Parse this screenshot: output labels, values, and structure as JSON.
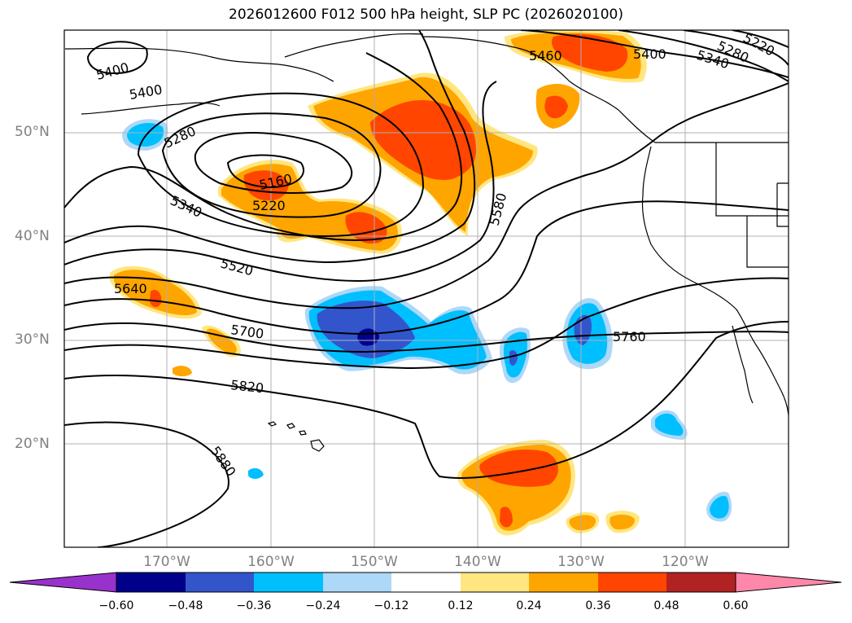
{
  "title": "2026012600 F012 500 hPa height, SLP PC (2026020100)",
  "lat_labels": [
    "50°N",
    "40°N",
    "30°N",
    "20°N"
  ],
  "lon_labels": [
    "170°W",
    "160°W",
    "150°W",
    "140°W",
    "130°W",
    "120°W"
  ],
  "contour_labels": [
    "5400",
    "5400",
    "5280",
    "5160",
    "5220",
    "5340",
    "5520",
    "5640",
    "5700",
    "5820",
    "5880",
    "5580",
    "5760",
    "5460",
    "5400",
    "5340",
    "5280",
    "5220"
  ],
  "colorbar": {
    "ticks": [
      "−0.60",
      "−0.48",
      "−0.36",
      "−0.24",
      "−0.12",
      "0.12",
      "0.24",
      "0.36",
      "0.48",
      "0.60"
    ],
    "colors": [
      "#9932cc",
      "#00008b",
      "#3355cc",
      "#00bfff",
      "#add8f8",
      "#ffffff",
      "#ffe680",
      "#ffa500",
      "#ff4500",
      "#b22222",
      "#ff88aa"
    ]
  },
  "palette": {
    "yellow": "#ffe680",
    "orange": "#ffa500",
    "red": "#ff4500",
    "darkred": "#b22222",
    "lightblue": "#add8f8",
    "cyan": "#00bfff",
    "blue": "#3355cc",
    "navy": "#00008b",
    "grid": "#b0b0b0",
    "axis": "#808080"
  }
}
